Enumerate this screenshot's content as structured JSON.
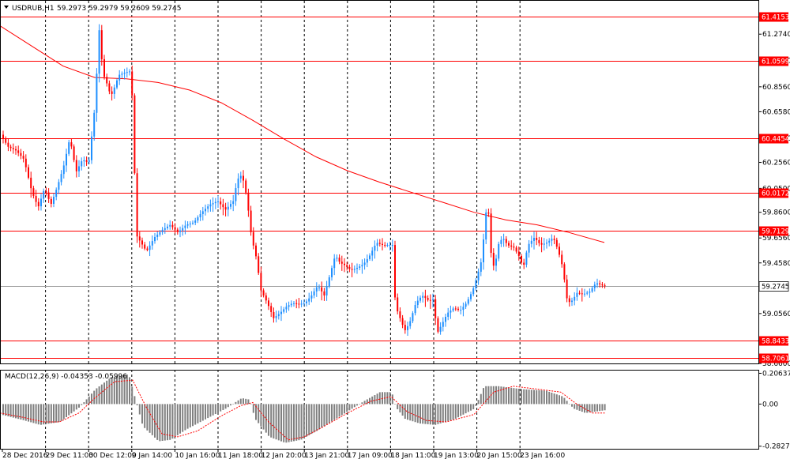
{
  "chart_data": {
    "type": "candlestick",
    "header": {
      "symbol": "USDRUB,H1",
      "values": "59.2973 59.2979 59.2609 59.2745"
    },
    "price_axis": {
      "ylim": [
        58.66,
        61.52
      ],
      "ticks": [
        "61.2740",
        "61.0660",
        "60.8560",
        "60.6580",
        "60.4460",
        "60.2560",
        "60.0500",
        "59.8600",
        "59.6560",
        "59.4580",
        "59.0560",
        "58.6600"
      ],
      "tick_values": [
        61.274,
        61.066,
        60.856,
        60.658,
        60.446,
        60.256,
        60.05,
        59.86,
        59.656,
        59.458,
        59.056,
        58.66
      ]
    },
    "levels": [
      {
        "label": "61.4153",
        "value": 61.4153,
        "color": "#ff0000"
      },
      {
        "label": "61.0599",
        "value": 61.0599,
        "color": "#ff0000"
      },
      {
        "label": "60.4454",
        "value": 60.4454,
        "color": "#ff0000"
      },
      {
        "label": "60.0172",
        "value": 60.0172,
        "color": "#ff0000"
      },
      {
        "label": "59.7129",
        "value": 59.7129,
        "color": "#ff0000"
      },
      {
        "label": "58.8433",
        "value": 58.8433,
        "color": "#ff0000"
      },
      {
        "label": "58.7061",
        "value": 58.7061,
        "color": "#ff0000"
      }
    ],
    "current_price": {
      "label": "59.2745",
      "value": 59.2745
    },
    "time_labels": [
      "28 Dec 2016",
      "29 Dec 11:00",
      "30 Dec 12:00",
      "9 Jan 14:00",
      "10 Jan 16:00",
      "11 Jan 18:00",
      "12 Jan 20:00",
      "13 Jan 21:00",
      "17 Jan 09:00",
      "18 Jan 11:00",
      "19 Jan 13:00",
      "20 Jan 15:00",
      "23 Jan 16:00"
    ],
    "moving_average": {
      "color": "#ff0000",
      "points": [
        [
          0,
          61.34
        ],
        [
          40,
          61.18
        ],
        [
          80,
          61.02
        ],
        [
          120,
          60.93
        ],
        [
          160,
          60.92
        ],
        [
          200,
          60.89
        ],
        [
          240,
          60.83
        ],
        [
          280,
          60.73
        ],
        [
          320,
          60.59
        ],
        [
          360,
          60.44
        ],
        [
          400,
          60.3
        ],
        [
          440,
          60.19
        ],
        [
          480,
          60.1
        ],
        [
          520,
          60.02
        ],
        [
          560,
          59.94
        ],
        [
          600,
          59.86
        ],
        [
          640,
          59.8
        ],
        [
          680,
          59.76
        ],
        [
          720,
          59.7
        ],
        [
          765,
          59.62
        ]
      ]
    },
    "price_path": [
      [
        0,
        60.48
      ],
      [
        10,
        60.38
      ],
      [
        20,
        60.35
      ],
      [
        30,
        60.28
      ],
      [
        40,
        60.02
      ],
      [
        48,
        59.9
      ],
      [
        56,
        60.05
      ],
      [
        64,
        59.92
      ],
      [
        72,
        60.06
      ],
      [
        80,
        60.22
      ],
      [
        88,
        60.45
      ],
      [
        96,
        60.18
      ],
      [
        104,
        60.28
      ],
      [
        112,
        60.25
      ],
      [
        120,
        60.72
      ],
      [
        125,
        61.32
      ],
      [
        130,
        60.96
      ],
      [
        135,
        60.88
      ],
      [
        140,
        60.78
      ],
      [
        145,
        60.86
      ],
      [
        150,
        60.95
      ],
      [
        158,
        60.97
      ],
      [
        165,
        60.98
      ],
      [
        168,
        60.66
      ],
      [
        172,
        59.68
      ],
      [
        178,
        59.62
      ],
      [
        185,
        59.55
      ],
      [
        195,
        59.66
      ],
      [
        205,
        59.72
      ],
      [
        215,
        59.76
      ],
      [
        225,
        59.7
      ],
      [
        235,
        59.76
      ],
      [
        245,
        59.78
      ],
      [
        255,
        59.86
      ],
      [
        265,
        59.92
      ],
      [
        275,
        59.95
      ],
      [
        285,
        59.88
      ],
      [
        295,
        59.95
      ],
      [
        300,
        60.12
      ],
      [
        306,
        60.16
      ],
      [
        312,
        59.98
      ],
      [
        318,
        59.66
      ],
      [
        324,
        59.5
      ],
      [
        330,
        59.24
      ],
      [
        338,
        59.14
      ],
      [
        346,
        59.02
      ],
      [
        354,
        59.06
      ],
      [
        362,
        59.11
      ],
      [
        370,
        59.14
      ],
      [
        378,
        59.13
      ],
      [
        386,
        59.14
      ],
      [
        394,
        59.2
      ],
      [
        402,
        59.28
      ],
      [
        410,
        59.2
      ],
      [
        418,
        59.38
      ],
      [
        424,
        59.52
      ],
      [
        430,
        59.46
      ],
      [
        436,
        59.44
      ],
      [
        444,
        59.4
      ],
      [
        452,
        59.42
      ],
      [
        460,
        59.45
      ],
      [
        468,
        59.52
      ],
      [
        476,
        59.62
      ],
      [
        484,
        59.6
      ],
      [
        492,
        59.6
      ],
      [
        497,
        59.6
      ],
      [
        500,
        59.12
      ],
      [
        506,
        59.02
      ],
      [
        512,
        58.92
      ],
      [
        518,
        58.98
      ],
      [
        526,
        59.14
      ],
      [
        534,
        59.2
      ],
      [
        542,
        59.16
      ],
      [
        548,
        59.17
      ],
      [
        553,
        58.9
      ],
      [
        558,
        58.96
      ],
      [
        566,
        59.06
      ],
      [
        574,
        59.1
      ],
      [
        582,
        59.08
      ],
      [
        590,
        59.14
      ],
      [
        598,
        59.24
      ],
      [
        604,
        59.36
      ],
      [
        610,
        59.5
      ],
      [
        614,
        59.86
      ],
      [
        618,
        59.85
      ],
      [
        622,
        59.46
      ],
      [
        626,
        59.42
      ],
      [
        630,
        59.6
      ],
      [
        636,
        59.66
      ],
      [
        642,
        59.6
      ],
      [
        650,
        59.58
      ],
      [
        656,
        59.52
      ],
      [
        662,
        59.42
      ],
      [
        668,
        59.6
      ],
      [
        676,
        59.66
      ],
      [
        684,
        59.6
      ],
      [
        692,
        59.62
      ],
      [
        700,
        59.66
      ],
      [
        706,
        59.56
      ],
      [
        712,
        59.42
      ],
      [
        718,
        59.14
      ],
      [
        724,
        59.16
      ],
      [
        730,
        59.22
      ],
      [
        738,
        59.21
      ],
      [
        746,
        59.23
      ],
      [
        754,
        59.3
      ],
      [
        762,
        59.28
      ],
      [
        767,
        59.27
      ]
    ],
    "macd": {
      "label": "MACD(12,26,9) -0.04353 -0.05996",
      "ylim": [
        -0.3,
        0.23
      ],
      "ticks": [
        "0.20637",
        "0.00",
        "-0.28274"
      ],
      "tick_values": [
        0.20637,
        0.0,
        -0.28274
      ],
      "hist_path": [
        [
          0,
          -0.07
        ],
        [
          30,
          -0.11
        ],
        [
          50,
          -0.14
        ],
        [
          75,
          -0.12
        ],
        [
          100,
          -0.02
        ],
        [
          120,
          0.1
        ],
        [
          140,
          0.18
        ],
        [
          162,
          0.2
        ],
        [
          168,
          0.08
        ],
        [
          180,
          -0.15
        ],
        [
          200,
          -0.25
        ],
        [
          215,
          -0.24
        ],
        [
          235,
          -0.17
        ],
        [
          260,
          -0.1
        ],
        [
          285,
          -0.03
        ],
        [
          305,
          0.04
        ],
        [
          315,
          0.03
        ],
        [
          322,
          -0.1
        ],
        [
          340,
          -0.22
        ],
        [
          360,
          -0.26
        ],
        [
          380,
          -0.24
        ],
        [
          400,
          -0.18
        ],
        [
          430,
          -0.08
        ],
        [
          460,
          0.02
        ],
        [
          480,
          0.08
        ],
        [
          495,
          0.08
        ],
        [
          500,
          -0.02
        ],
        [
          512,
          -0.1
        ],
        [
          530,
          -0.13
        ],
        [
          550,
          -0.14
        ],
        [
          575,
          -0.1
        ],
        [
          600,
          -0.03
        ],
        [
          612,
          0.12
        ],
        [
          630,
          0.12
        ],
        [
          660,
          0.1
        ],
        [
          690,
          0.09
        ],
        [
          712,
          0.05
        ],
        [
          725,
          -0.03
        ],
        [
          740,
          -0.06
        ],
        [
          767,
          -0.04
        ]
      ],
      "signal_path": [
        [
          0,
          -0.06
        ],
        [
          30,
          -0.09
        ],
        [
          55,
          -0.12
        ],
        [
          75,
          -0.12
        ],
        [
          100,
          -0.06
        ],
        [
          120,
          0.04
        ],
        [
          145,
          0.15
        ],
        [
          168,
          0.16
        ],
        [
          185,
          -0.02
        ],
        [
          205,
          -0.2
        ],
        [
          225,
          -0.22
        ],
        [
          250,
          -0.18
        ],
        [
          280,
          -0.08
        ],
        [
          305,
          -0.01
        ],
        [
          320,
          0.01
        ],
        [
          340,
          -0.12
        ],
        [
          365,
          -0.24
        ],
        [
          385,
          -0.22
        ],
        [
          410,
          -0.15
        ],
        [
          440,
          -0.06
        ],
        [
          470,
          0.02
        ],
        [
          495,
          0.05
        ],
        [
          515,
          -0.05
        ],
        [
          540,
          -0.11
        ],
        [
          565,
          -0.12
        ],
        [
          600,
          -0.07
        ],
        [
          625,
          0.08
        ],
        [
          650,
          0.12
        ],
        [
          680,
          0.1
        ],
        [
          710,
          0.08
        ],
        [
          730,
          0.0
        ],
        [
          750,
          -0.06
        ],
        [
          767,
          -0.06
        ]
      ]
    }
  }
}
